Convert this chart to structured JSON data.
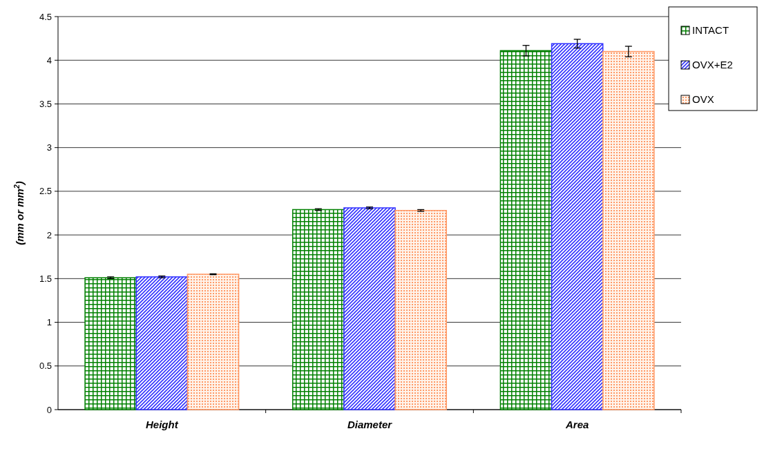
{
  "chart_data": {
    "type": "bar",
    "ylabel": "(mm or mm$^{2}$)",
    "categories": [
      "Height",
      "Diameter",
      "Area"
    ],
    "series": [
      {
        "name": "INTACT",
        "color": "#008000",
        "values": [
          1.51,
          2.29,
          4.11
        ],
        "errors": [
          0.01,
          0.01,
          0.06
        ]
      },
      {
        "name": "OVX+E2",
        "color": "#3333ff",
        "values": [
          1.52,
          2.31,
          4.19
        ],
        "errors": [
          0.01,
          0.01,
          0.05
        ]
      },
      {
        "name": "OVX",
        "color": "#ff9966",
        "values": [
          1.55,
          2.28,
          4.1
        ],
        "errors": [
          0.005,
          0.01,
          0.06
        ]
      }
    ],
    "ylim": [
      0,
      4.5
    ],
    "yticks": [
      0,
      0.5,
      1,
      1.5,
      2,
      2.5,
      3,
      3.5,
      4,
      4.5
    ],
    "grid": "y",
    "legend": "top right"
  }
}
